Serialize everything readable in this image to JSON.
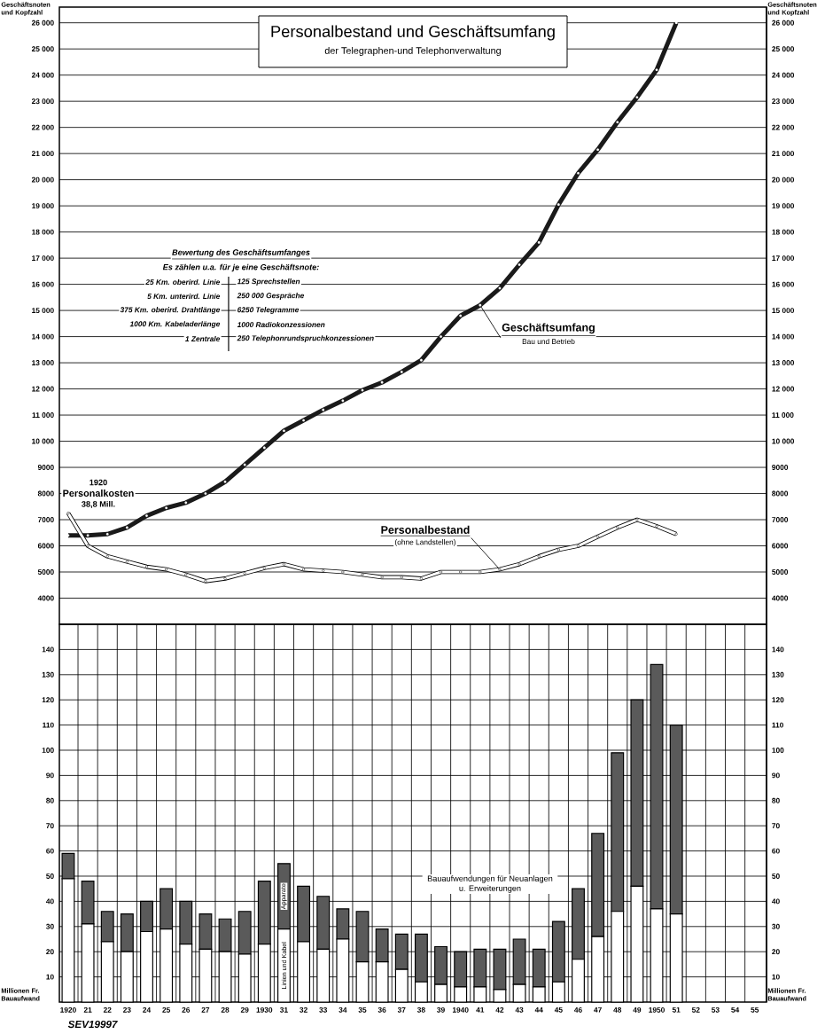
{
  "chart_data": [
    {
      "type": "line",
      "title": "Personalbestand und Geschäftsumfang",
      "subtitle": "der Telegraphen-und Telephonverwaltung",
      "ylabel": "Geschäftsnoten und Kopfzahl",
      "y2label": "Geschäftsnoten und Kopfzahl",
      "categories": [
        "1920",
        "21",
        "22",
        "23",
        "24",
        "25",
        "26",
        "27",
        "28",
        "29",
        "1930",
        "31",
        "32",
        "33",
        "34",
        "35",
        "36",
        "37",
        "38",
        "39",
        "1940",
        "41",
        "42",
        "43",
        "44",
        "45",
        "46",
        "47",
        "48",
        "49",
        "1950",
        "51",
        "52",
        "53",
        "54",
        "55"
      ],
      "series": [
        {
          "name": "Geschäftsumfang",
          "color": "#1a1a1a",
          "values": [
            6400,
            6400,
            6450,
            6700,
            7150,
            7450,
            7650,
            8000,
            8450,
            9100,
            9750,
            10400,
            10800,
            11200,
            11550,
            11950,
            12250,
            12650,
            13100,
            14000,
            14800,
            15200,
            15850,
            16750,
            17600,
            19050,
            20250,
            21150,
            22200,
            23150,
            24200,
            26000,
            null,
            null,
            null,
            null
          ]
        },
        {
          "name": "Personalbestand",
          "color": "#ffffff",
          "values": [
            7250,
            6000,
            5600,
            5400,
            5200,
            5100,
            4900,
            4650,
            4750,
            4950,
            5150,
            5300,
            5100,
            5050,
            5000,
            4900,
            4800,
            4800,
            4750,
            5000,
            5000,
            5000,
            5100,
            5300,
            5600,
            5850,
            6000,
            6350,
            6700,
            7000,
            6750,
            6450,
            null,
            null,
            null,
            null
          ]
        }
      ],
      "ylim": [
        3000,
        26600
      ],
      "yticks": [
        4000,
        5000,
        6000,
        7000,
        8000,
        9000,
        {
          "value": 10000,
          "label": "10 000"
        },
        {
          "value": 11000,
          "label": "11 000"
        },
        {
          "value": 12000,
          "label": "12 000"
        },
        {
          "value": 13000,
          "label": "13 000"
        },
        {
          "value": 14000,
          "label": "14 000"
        },
        {
          "value": 15000,
          "label": "15 000"
        },
        {
          "value": 16000,
          "label": "16 000"
        },
        {
          "value": 17000,
          "label": "17 000"
        },
        {
          "value": 18000,
          "label": "18 000"
        },
        {
          "value": 19000,
          "label": "19 000"
        },
        {
          "value": 20000,
          "label": "20 000"
        },
        {
          "value": 21000,
          "label": "21 000"
        },
        {
          "value": 22000,
          "label": "22 000"
        },
        {
          "value": 23000,
          "label": "23 000"
        },
        {
          "value": 24000,
          "label": "24 000"
        },
        {
          "value": 25000,
          "label": "25 000"
        },
        {
          "value": 26000,
          "label": "26 000"
        }
      ],
      "y2lim": [
        3000,
        26600
      ],
      "y2ticks": [
        4000,
        5000,
        6000,
        7000,
        8000,
        9000,
        {
          "value": 10000,
          "label": "10 000"
        },
        {
          "value": 11000,
          "label": "11 000"
        },
        {
          "value": 12000,
          "label": "12 000"
        },
        {
          "value": 13000,
          "label": "13 000"
        },
        {
          "value": 14000,
          "label": "14 000"
        },
        {
          "value": 15000,
          "label": "15 000"
        },
        {
          "value": 16000,
          "label": "16 000"
        },
        {
          "value": 17000,
          "label": "17 000"
        },
        {
          "value": 18000,
          "label": "18 000"
        },
        {
          "value": 19000,
          "label": "19 000"
        },
        {
          "value": 20000,
          "label": "20 000"
        },
        {
          "value": 21000,
          "label": "21 000"
        },
        {
          "value": 22000,
          "label": "22 000"
        },
        {
          "value": 23000,
          "label": "23 000"
        },
        {
          "value": 24000,
          "label": "24 000"
        },
        {
          "value": 25000,
          "label": "25 000"
        },
        {
          "value": 26000,
          "label": "26 000"
        }
      ],
      "tick_labels": "y",
      "grid": true,
      "marker": "circle",
      "annotations": [
        "Bewertung des Geschäftsumfanges",
        "Es zählen u.a. für je eine Geschäftsnote:",
        "25 Km. oberird. Linie",
        "5 Km. unterird. Linie",
        "375 Km. oberird. Drahtlänge",
        "1000 Km. Kabeladerlänge",
        "1 Zentrale",
        "125 Sprechstellen",
        "250 000 Gespräche",
        "6250 Telegramme",
        "1000 Radiokonzessionen",
        "250 Telephonrundspruchkonzessionen",
        "1920",
        "Personalkosten",
        "38,8 Mill.",
        "Bau und Betrieb",
        "(ohne Landstellen)"
      ]
    },
    {
      "type": "bar",
      "stacked": true,
      "ylabel": "Millionen Fr. Bauaufwand",
      "y2label": "Millionen Fr. Bauaufwand",
      "categories": [
        "1920",
        "21",
        "22",
        "23",
        "24",
        "25",
        "26",
        "27",
        "28",
        "29",
        "1930",
        "31",
        "32",
        "33",
        "34",
        "35",
        "36",
        "37",
        "38",
        "39",
        "1940",
        "41",
        "42",
        "43",
        "44",
        "45",
        "46",
        "47",
        "48",
        "49",
        "1950",
        "51",
        "52",
        "53",
        "54",
        "55"
      ],
      "series": [
        {
          "name": "Linien und Kabel",
          "color": "#ffffff",
          "values": [
            49,
            31,
            24,
            20,
            28,
            29,
            23,
            21,
            20,
            19,
            23,
            29,
            24,
            21,
            25,
            16,
            16,
            13,
            8,
            7,
            6,
            6,
            5,
            7,
            6,
            8,
            17,
            26,
            36,
            46,
            37,
            35,
            null,
            null,
            null,
            null
          ]
        },
        {
          "name": "Apparate",
          "color": "#5a5a5a",
          "values": [
            10,
            17,
            12,
            15,
            12,
            16,
            17,
            14,
            13,
            17,
            25,
            26,
            22,
            21,
            12,
            20,
            13,
            14,
            19,
            15,
            14,
            15,
            16,
            18,
            15,
            24,
            28,
            41,
            63,
            74,
            97,
            75,
            null,
            null,
            null,
            null
          ]
        }
      ],
      "ylim": [
        0,
        150
      ],
      "yticks": [
        10,
        20,
        30,
        40,
        50,
        60,
        70,
        80,
        90,
        100,
        110,
        120,
        130,
        140
      ],
      "y2lim": [
        0,
        150
      ],
      "y2ticks": [
        10,
        20,
        30,
        40,
        50,
        60,
        70,
        80,
        90,
        100,
        110,
        120,
        130,
        140
      ],
      "grid": true,
      "annotations": [
        "Bauaufwendungen für Neuanlagen u. Erweiterungen",
        "SEV19997"
      ]
    }
  ]
}
